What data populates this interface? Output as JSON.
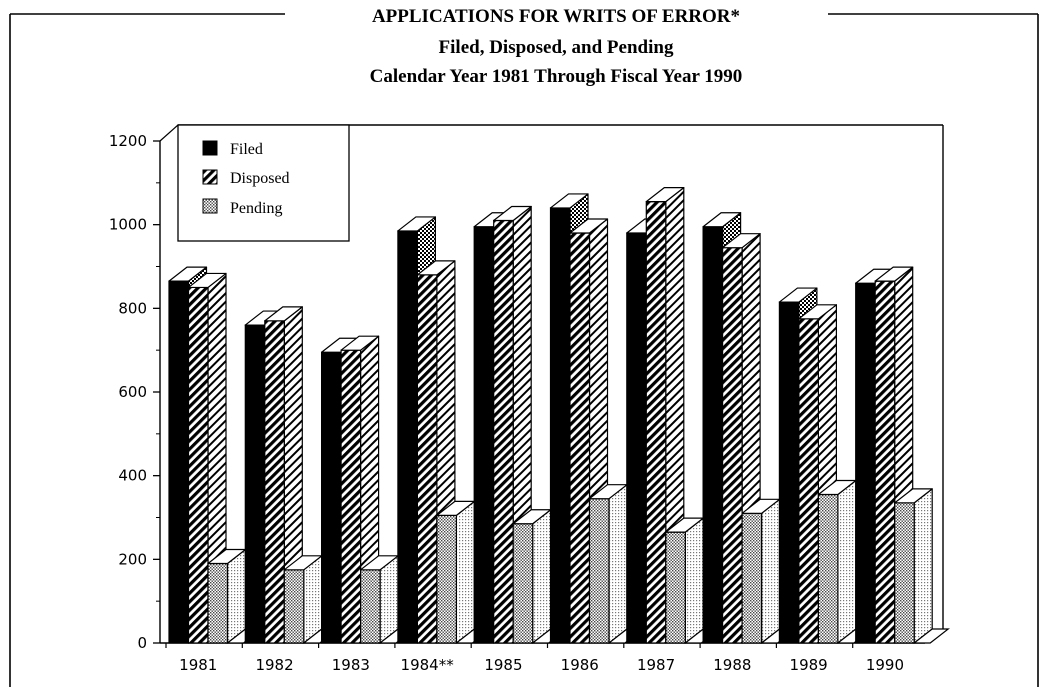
{
  "chart_data": {
    "type": "bar",
    "title": "APPLICATIONS FOR WRITS OF ERROR*",
    "subtitle": [
      "Filed, Disposed, and Pending",
      "Calendar Year 1981 Through Fiscal Year 1990"
    ],
    "xlabel": "",
    "ylabel": "",
    "categories": [
      "1981",
      "1982",
      "1983",
      "1984**",
      "1985",
      "1986",
      "1987",
      "1988",
      "1989",
      "1990"
    ],
    "series": [
      {
        "name": "Filed",
        "values": [
          865,
          760,
          695,
          985,
          995,
          1040,
          980,
          995,
          815,
          860
        ]
      },
      {
        "name": "Disposed",
        "values": [
          850,
          770,
          700,
          880,
          1010,
          980,
          1055,
          945,
          775,
          865
        ]
      },
      {
        "name": "Pending",
        "values": [
          190,
          175,
          175,
          305,
          285,
          345,
          265,
          310,
          355,
          335
        ]
      }
    ],
    "ylim": [
      0,
      1200
    ],
    "yticks": [
      0,
      200,
      400,
      600,
      800,
      1000,
      1200
    ],
    "grid": false,
    "legend_position": "top-left",
    "colors": {
      "filed": "#000000",
      "disposed_hatch": "#000000",
      "pending_dots": "#555555"
    }
  }
}
